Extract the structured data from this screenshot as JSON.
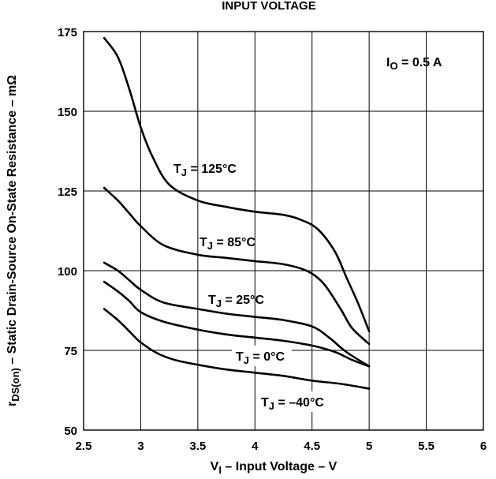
{
  "chart_data": {
    "type": "line",
    "title": "INPUT VOLTAGE",
    "xlabel": "V",
    "xlabel_sub": "I",
    "xlabel_rest": " – Input Voltage – V",
    "ylabel_pre": "r",
    "ylabel_sub": "DS(on)",
    "ylabel_rest": " – Static Drain-Source On-State Resistance – mΩ",
    "xlim": [
      2.5,
      6
    ],
    "ylim": [
      50,
      175
    ],
    "x_ticks": [
      "2.5",
      "3",
      "3.5",
      "4",
      "4.5",
      "5",
      "5.5",
      "6"
    ],
    "y_ticks": [
      "50",
      "75",
      "100",
      "125",
      "150",
      "175"
    ],
    "grid": true,
    "annotation": {
      "pre": "I",
      "sub": "O",
      "rest": " = 0.5 A"
    },
    "series": [
      {
        "name": "125°C",
        "label_pre": "T",
        "label_sub": "J",
        "label_rest": " = 125°C",
        "x": [
          2.68,
          2.8,
          2.9,
          3.0,
          3.1,
          3.25,
          3.5,
          3.75,
          4.0,
          4.25,
          4.4,
          4.55,
          4.7,
          4.8,
          4.9,
          5.0
        ],
        "y": [
          173,
          167,
          157,
          145,
          136,
          127,
          122,
          120,
          118.5,
          117.5,
          116,
          113,
          106,
          98,
          90,
          81
        ]
      },
      {
        "name": "85°C",
        "label_pre": "T",
        "label_sub": "J",
        "label_rest": " = 85°C",
        "x": [
          2.68,
          2.8,
          2.9,
          3.0,
          3.2,
          3.5,
          3.75,
          4.0,
          4.25,
          4.45,
          4.6,
          4.75,
          4.85,
          5.0
        ],
        "y": [
          126,
          122,
          118,
          114,
          108,
          105,
          104,
          103,
          102,
          100,
          96,
          88,
          82,
          77
        ]
      },
      {
        "name": "25°C",
        "label_pre": "T",
        "label_sub": "J",
        "label_rest": " = 25°C",
        "x": [
          2.68,
          2.8,
          2.9,
          3.0,
          3.2,
          3.5,
          3.75,
          4.0,
          4.25,
          4.5,
          4.65,
          4.8,
          5.0
        ],
        "y": [
          102.5,
          100,
          97,
          94,
          90,
          88,
          86.5,
          85.5,
          84.5,
          82.5,
          79,
          74.5,
          70
        ]
      },
      {
        "name": "0°C",
        "label_pre": "T",
        "label_sub": "J",
        "label_rest": " = 0°C",
        "x": [
          2.68,
          2.8,
          2.9,
          3.0,
          3.2,
          3.5,
          3.75,
          4.0,
          4.25,
          4.5,
          4.7,
          4.85,
          5.0
        ],
        "y": [
          96.5,
          93.5,
          90.5,
          87,
          84,
          81.5,
          80,
          79,
          78,
          76.5,
          74.5,
          72,
          70
        ]
      },
      {
        "name": "-40°C",
        "label_pre": "T",
        "label_sub": "J",
        "label_rest": " = –40°C",
        "x": [
          2.68,
          2.8,
          2.9,
          3.0,
          3.15,
          3.3,
          3.5,
          3.75,
          4.0,
          4.25,
          4.5,
          4.75,
          5.0
        ],
        "y": [
          88,
          84.5,
          81,
          77.5,
          74,
          72,
          70.5,
          69,
          68,
          67,
          65.5,
          64.5,
          63
        ]
      }
    ]
  }
}
